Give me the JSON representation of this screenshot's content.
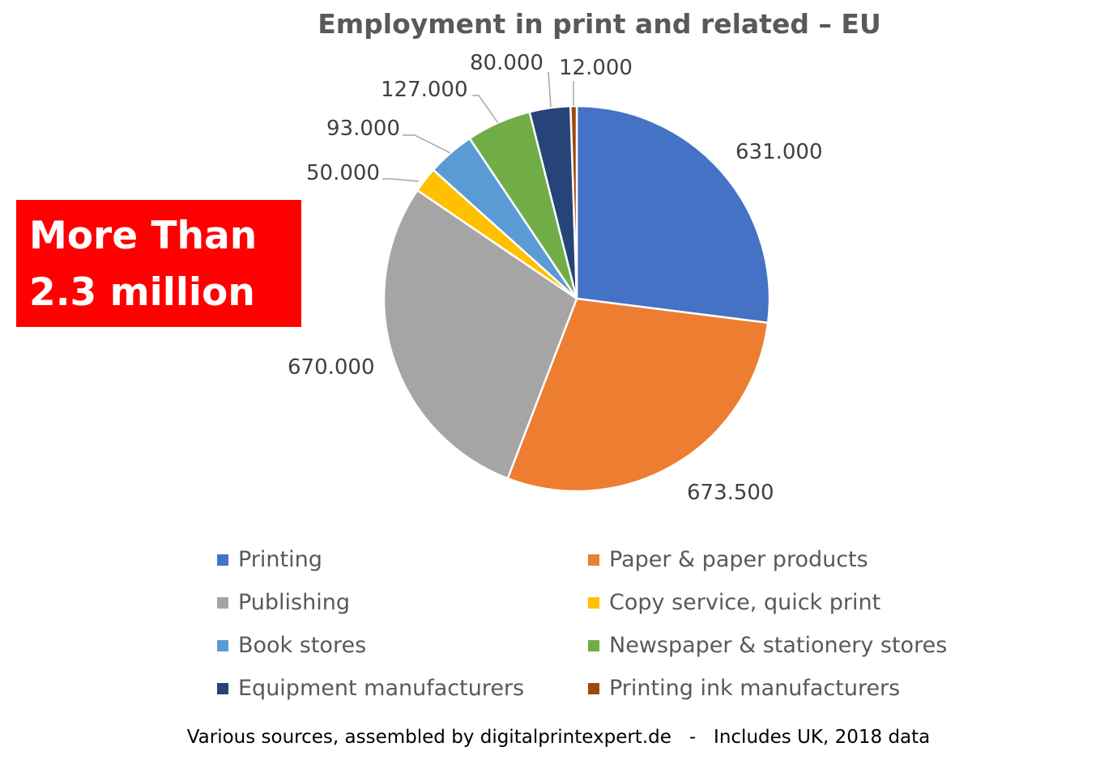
{
  "chart_data": {
    "type": "pie",
    "title": "Employment in print and related – EU",
    "categories": [
      "Printing",
      "Paper & paper products",
      "Publishing",
      "Copy service, quick print",
      "Book stores",
      "Newspaper & stationery stores",
      "Equipment manufacturers",
      "Printing ink manufacturers"
    ],
    "values": [
      631000,
      673500,
      670000,
      50000,
      93000,
      127000,
      80000,
      12000
    ],
    "data_labels": [
      "631.000",
      "673.500",
      "670.000",
      "50.000",
      "93.000",
      "127.000",
      "80.000",
      "12.000"
    ],
    "colors": [
      "#4472C4",
      "#ED7D31",
      "#A5A5A5",
      "#FFC000",
      "#5B9BD5",
      "#70AD47",
      "#264478",
      "#9E480E"
    ],
    "start_angle": "top, clockwise",
    "legend_position": "bottom"
  },
  "callout": {
    "line1": "More Than",
    "line2": "2.3 million",
    "color": "#FF0000"
  },
  "footer": "Various sources, assembled by digitalprintexpert.de   -   Includes UK, 2018 data"
}
